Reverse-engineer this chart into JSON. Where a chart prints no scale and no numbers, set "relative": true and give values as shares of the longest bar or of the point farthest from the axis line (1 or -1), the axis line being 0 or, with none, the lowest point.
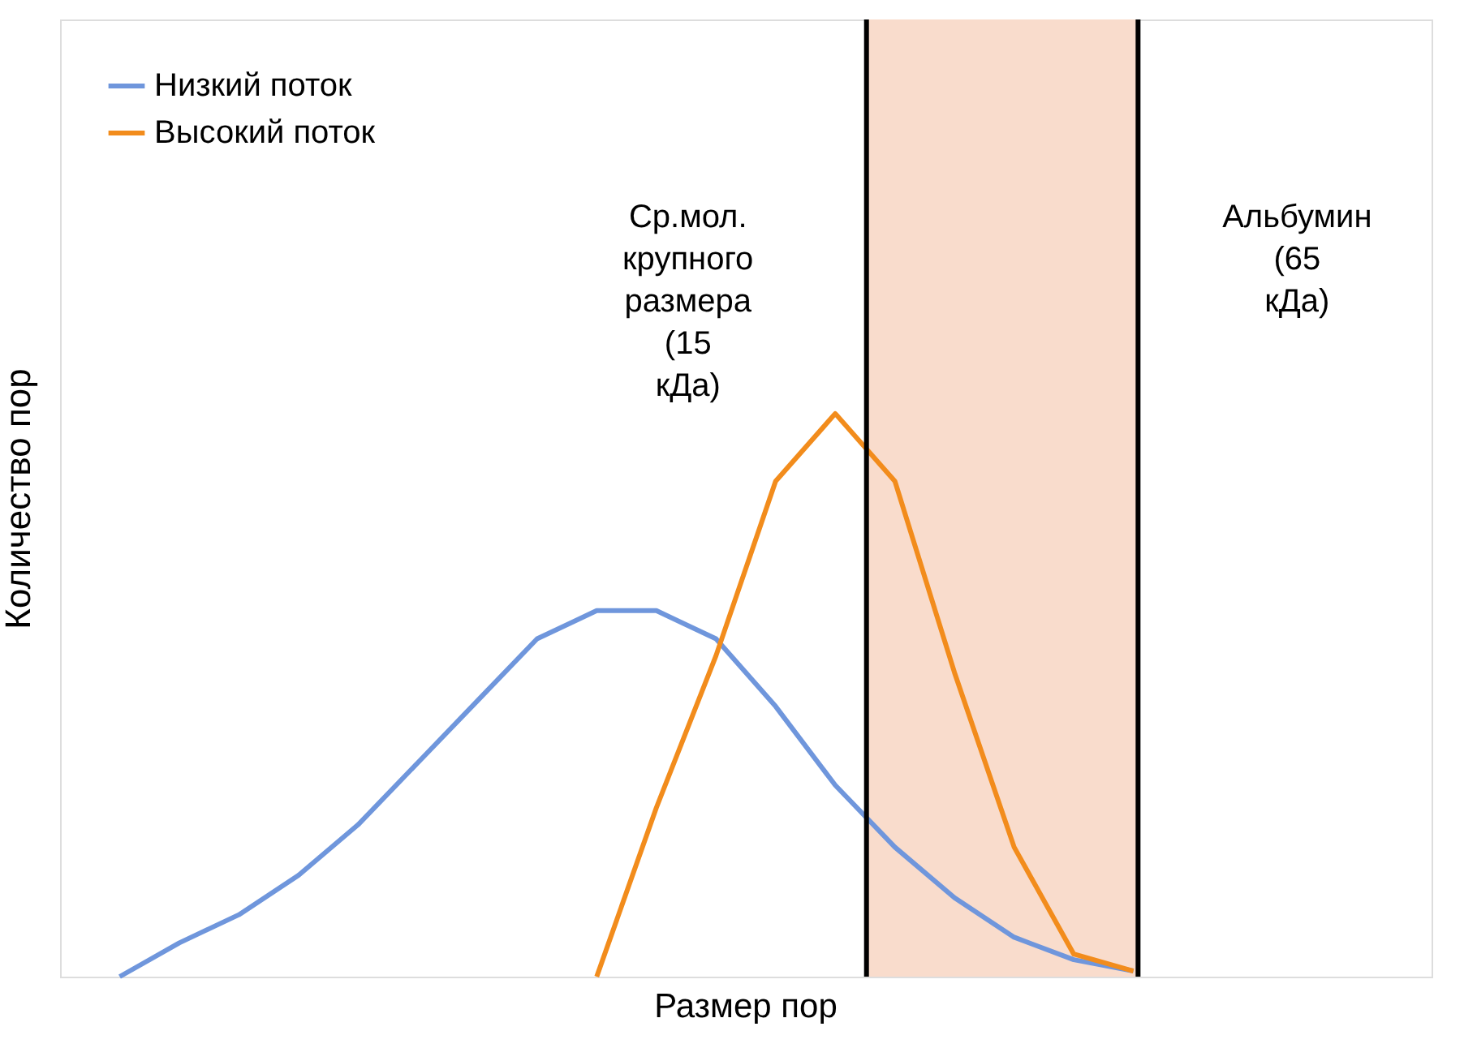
{
  "chart_data": {
    "type": "line",
    "xlabel": "Размер пор",
    "ylabel": "Количество пор",
    "relative": true,
    "tick_labels": false,
    "grid": false,
    "legend": "top left",
    "line_style": "solid",
    "marker": "none",
    "categories": [
      null,
      null,
      null,
      null,
      null,
      null,
      null,
      null,
      null,
      null,
      null,
      null,
      null,
      null,
      null,
      null,
      null,
      null,
      null,
      null,
      null,
      null,
      null,
      null
    ],
    "series": [
      {
        "name": "Низкий поток",
        "color": "#6f96dc",
        "values": [
          null,
          0,
          0.06,
          0.11,
          0.18,
          0.27,
          0.38,
          0.49,
          0.6,
          0.65,
          0.65,
          0.6,
          0.48,
          0.34,
          0.23,
          0.14,
          0.07,
          0.03,
          0.01,
          null,
          null,
          null,
          null,
          null
        ]
      },
      {
        "name": "Высокий поток",
        "color": "#f28c1c",
        "values": [
          null,
          null,
          null,
          null,
          null,
          null,
          null,
          null,
          null,
          0,
          0.3,
          0.57,
          0.88,
          1,
          0.88,
          0.54,
          0.23,
          0.04,
          0.01,
          null,
          null,
          null,
          null,
          null
        ]
      }
    ],
    "annotations": [
      "Ср.мол. крупного размера (15 кДа)",
      "Альбумин (65 кДа)"
    ]
  }
}
